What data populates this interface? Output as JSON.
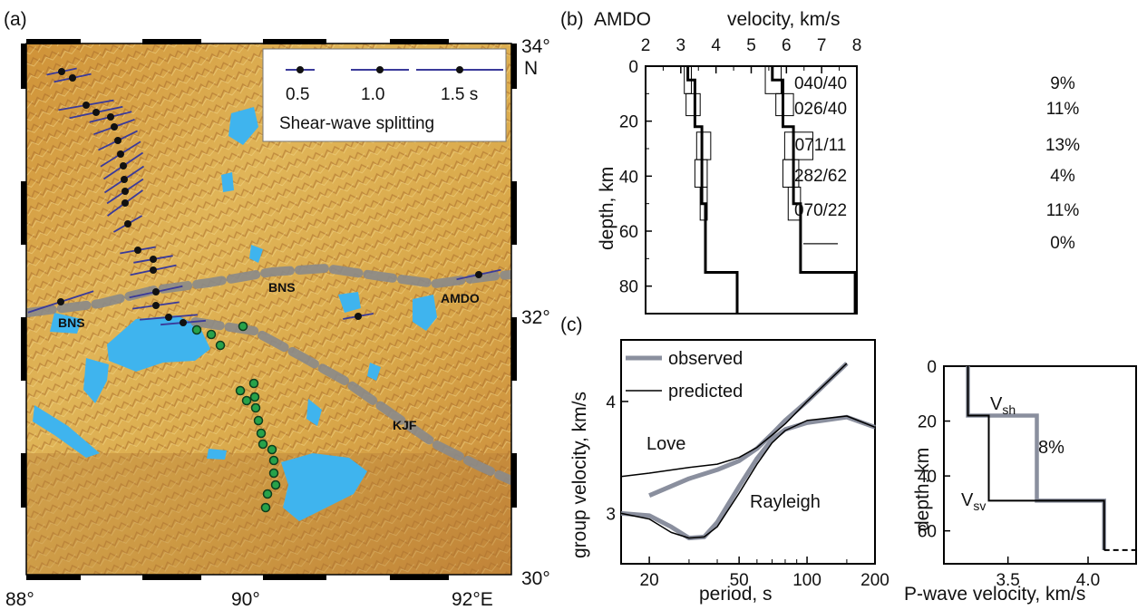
{
  "panel_a": {
    "label": "(a)",
    "lat_labels": [
      "34°",
      "N",
      "32°",
      "30°"
    ],
    "lon_labels": [
      "88°",
      "90°",
      "92°E"
    ],
    "legend": {
      "items": [
        "0.5",
        "1.0",
        "1.5 s"
      ],
      "title": "Shear-wave splitting"
    },
    "map_labels": {
      "bns_left": "BNS",
      "bns_mid": "BNS",
      "amdo": "AMDO",
      "kjf": "KJF"
    },
    "colors": {
      "terrain": "#d9a84a",
      "lakes": "#3fb4ee",
      "suture": "#8a8a8a",
      "split_bar": "#3a3a9a",
      "station_black": "#111111",
      "station_green": "#27a24a"
    }
  },
  "panel_b": {
    "label": "(b)",
    "station": "AMDO",
    "xlabel": "velocity, km/s",
    "ylabel": "depth, km",
    "x_ticks": [
      "2",
      "3",
      "4",
      "5",
      "6",
      "7",
      "8"
    ],
    "y_ticks": [
      "0",
      "20",
      "40",
      "60",
      "80"
    ],
    "orientations": [
      "040/40",
      "026/40",
      "071/11",
      "282/62",
      "070/22",
      "——"
    ],
    "anisotropy": [
      "9%",
      "11%",
      "13%",
      "4%",
      "11%",
      "0%"
    ]
  },
  "panel_c": {
    "label": "(c)",
    "dispersion": {
      "ylabel": "group velocity, km/s",
      "xlabel": "period, s",
      "x_ticks": [
        "20",
        "50",
        "100",
        "200"
      ],
      "y_ticks": [
        "3",
        "4"
      ],
      "legend": [
        "observed",
        "predicted"
      ],
      "love_label": "Love",
      "rayleigh_label": "Rayleigh"
    },
    "profile": {
      "xlabel": "P-wave velocity, km/s",
      "ylabel": "depth, km",
      "x_ticks": [
        "3.5",
        "4.0"
      ],
      "y_ticks": [
        "0",
        "20",
        "40",
        "60"
      ],
      "vsh_main": "V",
      "vsh_sub": "sh",
      "vsv_main": "V",
      "vsv_sub": "sv",
      "anisotropy": "8%"
    }
  },
  "chart_data": [
    {
      "type": "line",
      "panel": "b",
      "xlabel": "velocity, km/s",
      "ylabel": "depth, km",
      "xlim": [
        2,
        8
      ],
      "ylim": [
        90,
        0
      ],
      "series": [
        {
          "points": [
            [
              3.2,
              0
            ],
            [
              3.2,
              5
            ],
            [
              3.4,
              5
            ],
            [
              3.4,
              22
            ],
            [
              3.6,
              22
            ],
            [
              3.6,
              50
            ],
            [
              3.7,
              50
            ],
            [
              3.7,
              75
            ],
            [
              4.6,
              75
            ],
            [
              4.6,
              90
            ]
          ]
        },
        {
          "points": [
            [
              5.6,
              0
            ],
            [
              5.6,
              5
            ],
            [
              5.9,
              5
            ],
            [
              5.9,
              22
            ],
            [
              6.2,
              22
            ],
            [
              6.2,
              50
            ],
            [
              6.4,
              50
            ],
            [
              6.4,
              75
            ],
            [
              7.95,
              75
            ],
            [
              7.95,
              90
            ]
          ]
        }
      ],
      "layer_labels": [
        "040/40",
        "026/40",
        "071/11",
        "282/62",
        "070/22",
        "——"
      ],
      "anisotropy_percent": [
        9,
        11,
        13,
        4,
        11,
        0
      ]
    },
    {
      "type": "line",
      "panel": "c-left",
      "xlabel": "period, s",
      "ylabel": "group velocity, km/s",
      "x_scale": "log",
      "xlim": [
        15,
        200
      ],
      "ylim": [
        2.55,
        4.55
      ],
      "series": [
        {
          "name": "observed",
          "curve": "Love",
          "x": [
            20,
            30,
            40,
            50,
            60,
            70,
            80,
            100,
            150
          ],
          "y": [
            3.16,
            3.31,
            3.39,
            3.47,
            3.58,
            3.71,
            3.83,
            4.0,
            4.34
          ]
        },
        {
          "name": "predicted",
          "curve": "Love",
          "x": [
            15,
            20,
            30,
            40,
            50,
            60,
            70,
            80,
            100,
            150
          ],
          "y": [
            3.33,
            3.36,
            3.41,
            3.44,
            3.5,
            3.59,
            3.7,
            3.8,
            4.0,
            4.34
          ]
        },
        {
          "name": "observed",
          "curve": "Rayleigh",
          "x": [
            15,
            20,
            25,
            30,
            35,
            40,
            50,
            60,
            70,
            80,
            100,
            150,
            200
          ],
          "y": [
            3.0,
            2.98,
            2.88,
            2.78,
            2.79,
            2.92,
            3.24,
            3.49,
            3.66,
            3.75,
            3.81,
            3.86,
            3.77
          ]
        },
        {
          "name": "predicted",
          "curve": "Rayleigh",
          "x": [
            15,
            20,
            25,
            30,
            35,
            40,
            50,
            60,
            70,
            80,
            100,
            150,
            200
          ],
          "y": [
            3.0,
            2.95,
            2.83,
            2.78,
            2.79,
            2.88,
            3.18,
            3.44,
            3.63,
            3.74,
            3.83,
            3.87,
            3.77
          ]
        }
      ]
    },
    {
      "type": "line",
      "panel": "c-right",
      "xlabel": "P-wave velocity, km/s",
      "ylabel": "depth, km",
      "xlim": [
        3.1,
        4.3
      ],
      "ylim": [
        72,
        0
      ],
      "series": [
        {
          "name": "Vsh",
          "points": [
            [
              3.25,
              0
            ],
            [
              3.25,
              18
            ],
            [
              3.68,
              18
            ],
            [
              3.68,
              49
            ],
            [
              4.1,
              49
            ],
            [
              4.1,
              67
            ]
          ]
        },
        {
          "name": "Vsv",
          "points": [
            [
              3.25,
              0
            ],
            [
              3.25,
              18
            ],
            [
              3.38,
              18
            ],
            [
              3.38,
              49
            ],
            [
              4.1,
              49
            ],
            [
              4.1,
              67
            ]
          ]
        }
      ],
      "anisotropy_percent": 8
    }
  ]
}
